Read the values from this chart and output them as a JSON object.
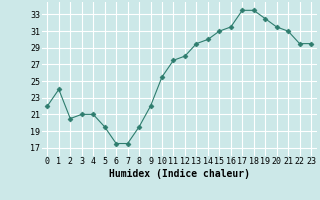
{
  "x": [
    0,
    1,
    2,
    3,
    4,
    5,
    6,
    7,
    8,
    9,
    10,
    11,
    12,
    13,
    14,
    15,
    16,
    17,
    18,
    19,
    20,
    21,
    22,
    23
  ],
  "y": [
    22,
    24,
    20.5,
    21,
    21,
    19.5,
    17.5,
    17.5,
    19.5,
    22,
    25.5,
    27.5,
    28,
    29.5,
    30,
    31,
    31.5,
    33.5,
    33.5,
    32.5,
    31.5,
    31,
    29.5,
    29.5
  ],
  "line_color": "#2e7d6e",
  "marker": "D",
  "marker_size": 2.5,
  "bg_color": "#cce8e8",
  "grid_color": "#b0d0d0",
  "xlabel": "Humidex (Indice chaleur)",
  "xlabel_fontsize": 7,
  "xlabel_fontfamily": "monospace",
  "yticks": [
    17,
    19,
    21,
    23,
    25,
    27,
    29,
    31,
    33
  ],
  "xticks": [
    0,
    1,
    2,
    3,
    4,
    5,
    6,
    7,
    8,
    9,
    10,
    11,
    12,
    13,
    14,
    15,
    16,
    17,
    18,
    19,
    20,
    21,
    22,
    23
  ],
  "ylim": [
    16,
    34.5
  ],
  "xlim": [
    -0.5,
    23.5
  ],
  "tick_fontsize": 6,
  "tick_fontfamily": "monospace"
}
